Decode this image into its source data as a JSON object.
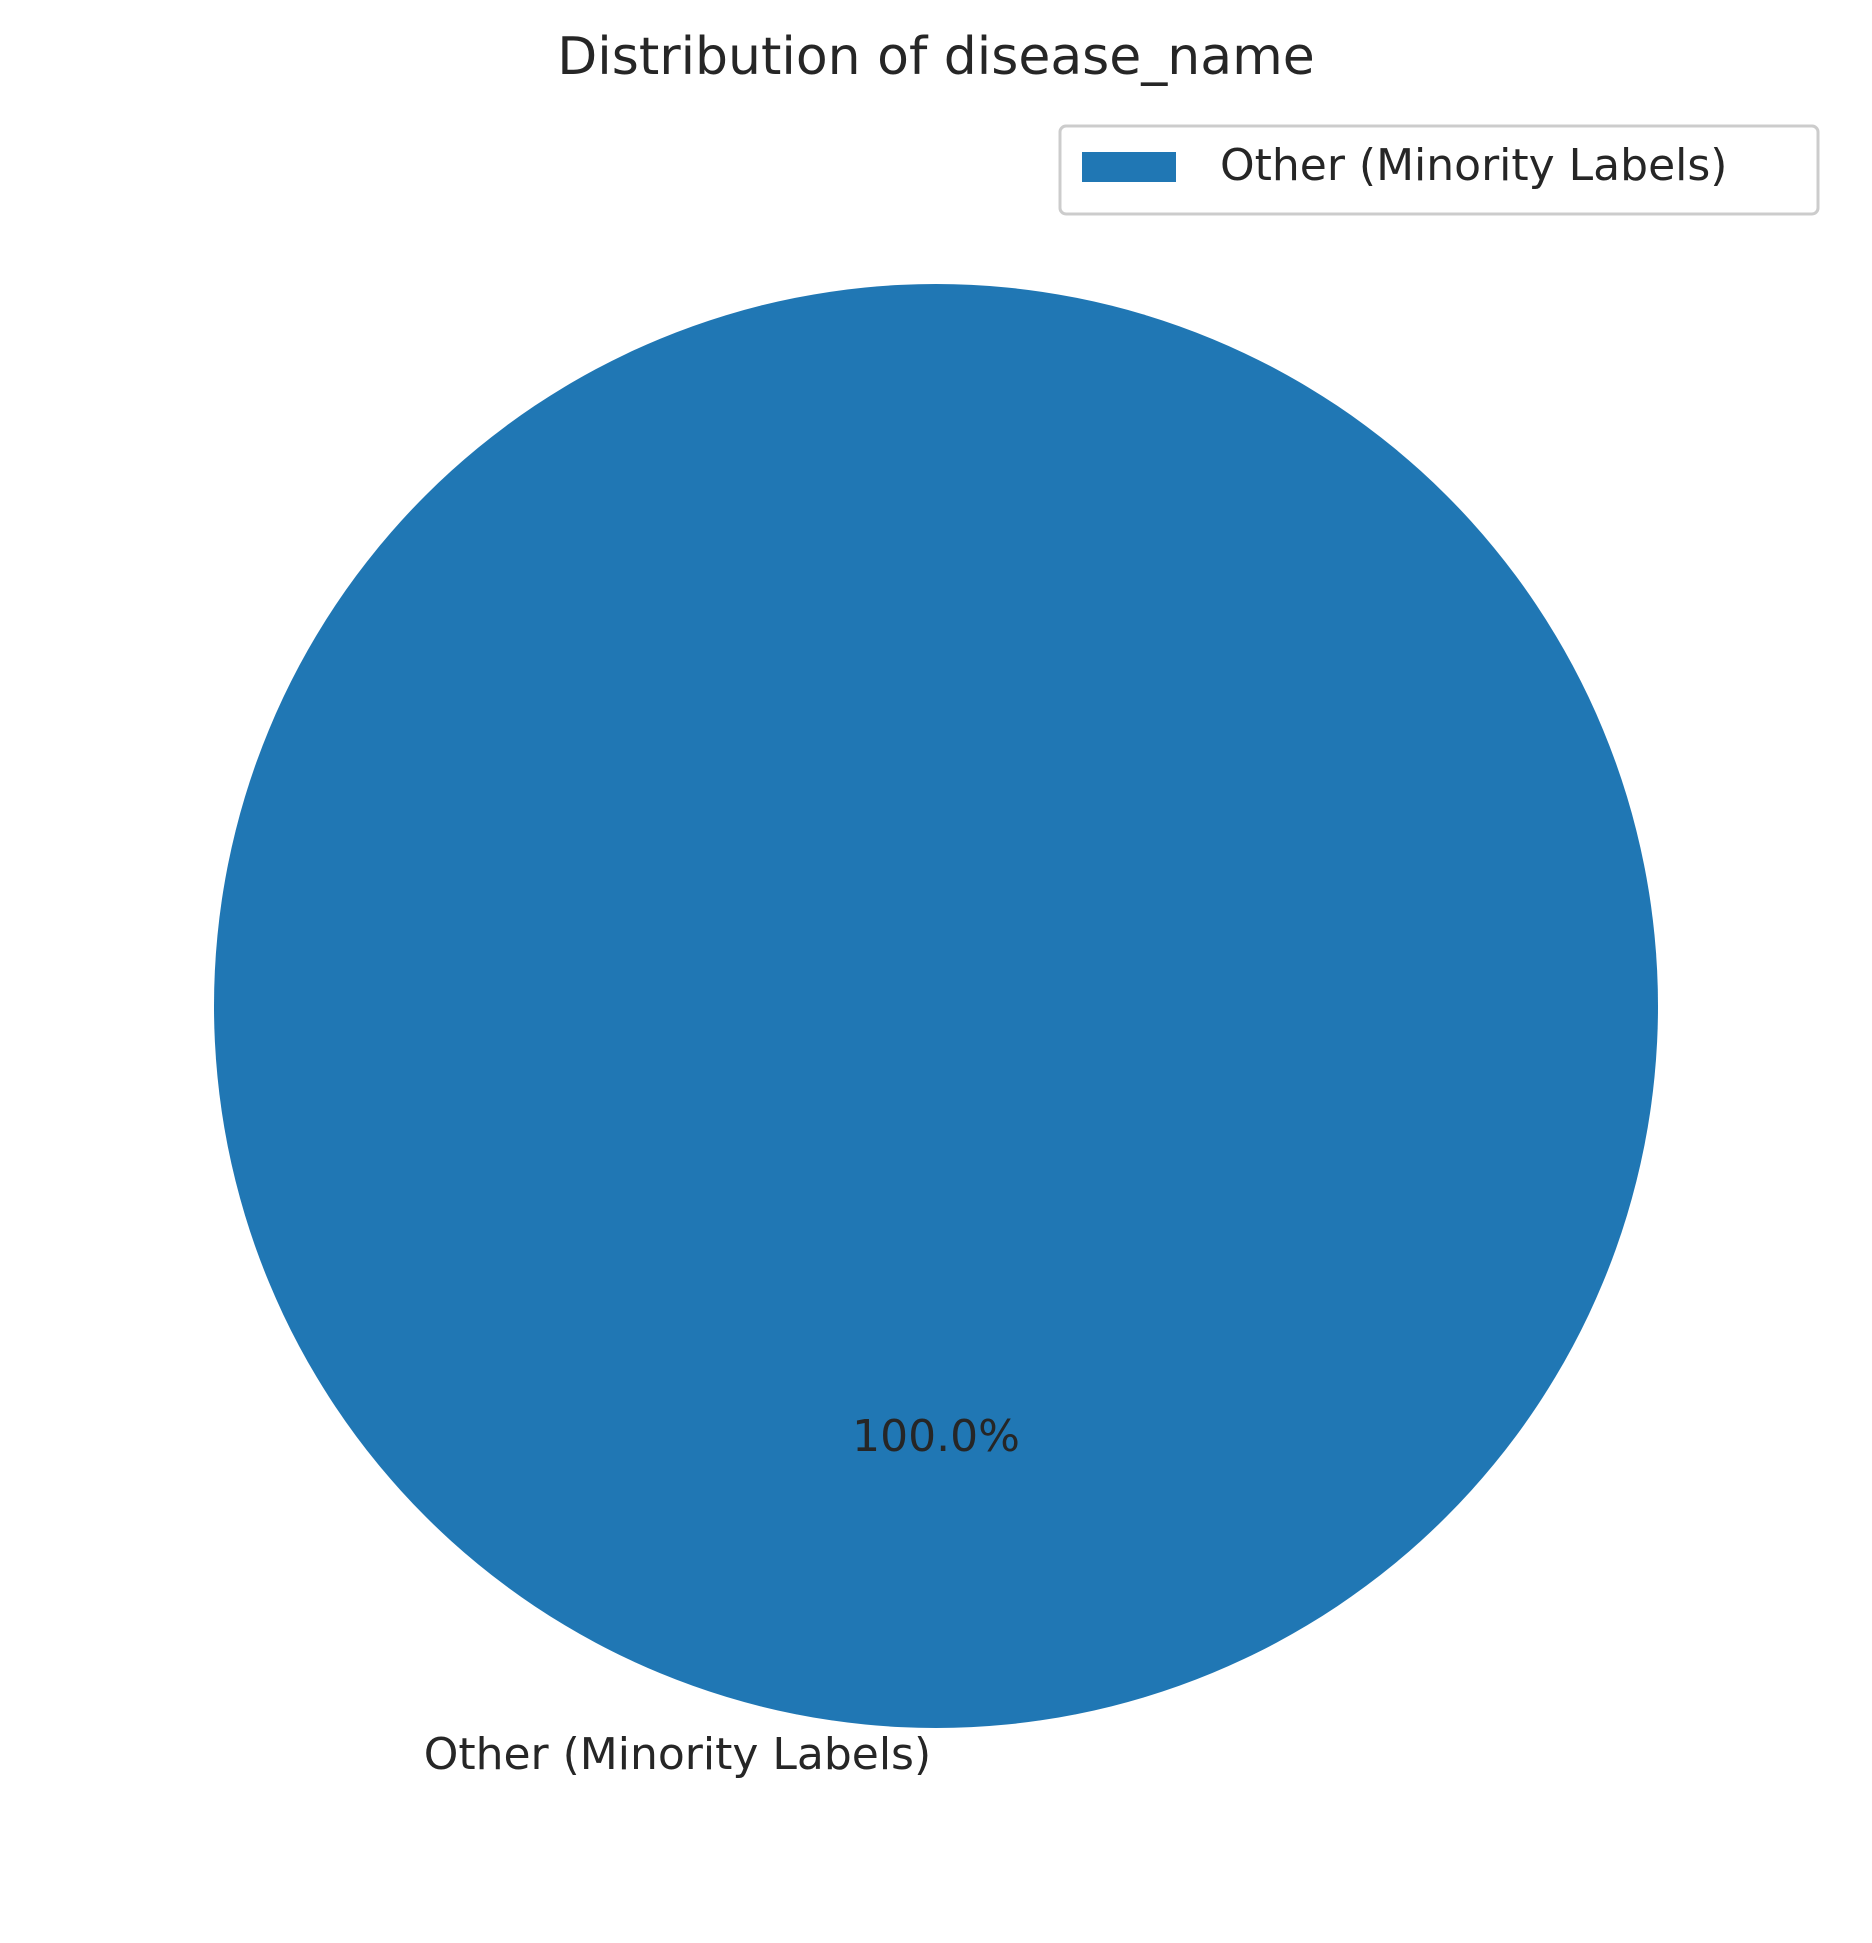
{
  "chart_data": {
    "type": "pie",
    "title": "Distribution of disease_name",
    "categories": [
      "Other (Minority Labels)"
    ],
    "values": [
      100.0
    ],
    "percent_labels": [
      "100.0%"
    ],
    "colors": [
      "#2077b4"
    ],
    "legend": {
      "placement": "top-right",
      "entries": [
        "Other (Minority Labels)"
      ]
    },
    "grid": false
  }
}
